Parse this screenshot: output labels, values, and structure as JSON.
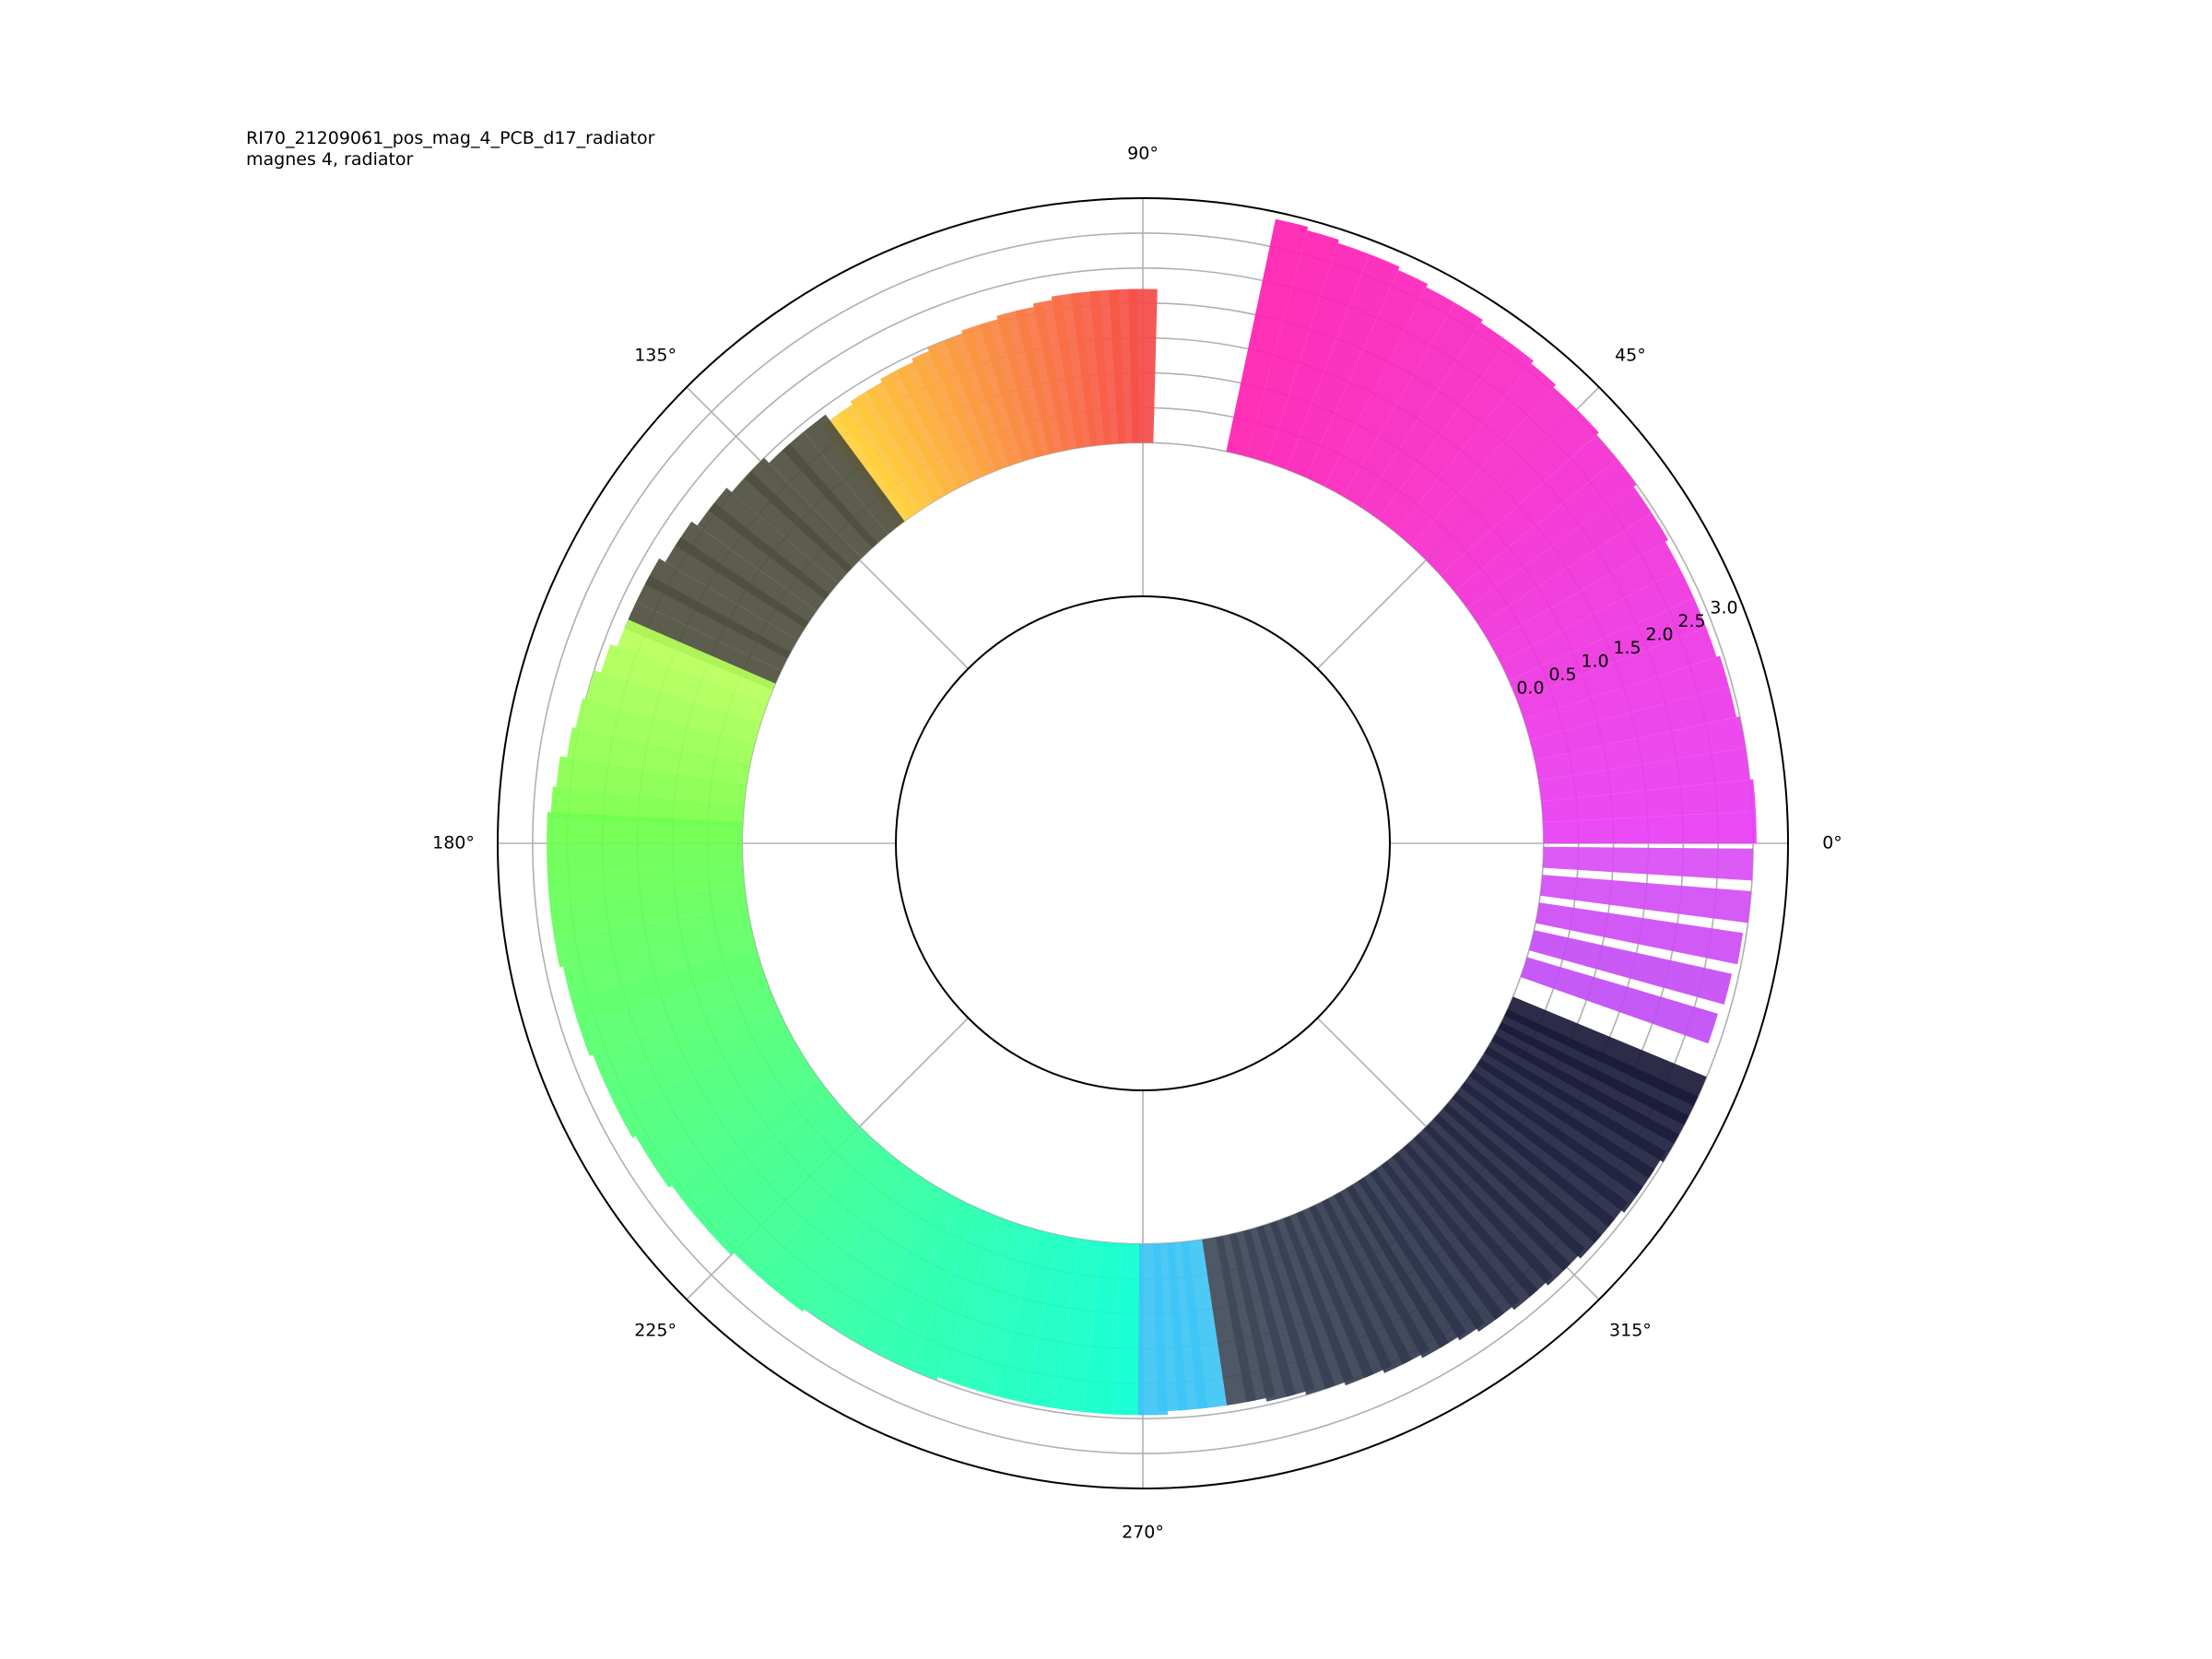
{
  "chart_data": {
    "type": "bar",
    "subtype": "polar",
    "title": "RI70_21209061_pos_mag_4_PCB_d17_radiator",
    "subtitle": "magnes 4, radiator",
    "angle_ticks": [
      "0°",
      "45°",
      "90°",
      "135°",
      "180°",
      "225°",
      "270°",
      "315°"
    ],
    "radial_ticks": [
      "0.0",
      "0.5",
      "1.0",
      "1.5",
      "2.0",
      "2.5",
      "3.0"
    ],
    "rlim": [
      -2.2,
      3.5
    ],
    "bar_base": 0.0,
    "grid": true,
    "bar_width_deg": 3.0,
    "series": [
      {
        "segment": "magenta",
        "color_start": "#e83cf5",
        "color_end": "#ff1fb0",
        "theta": [
          1.5,
          4.5,
          7.5,
          10.5,
          13.5,
          16.5,
          19.5,
          22.5,
          25.5,
          28.5,
          31.5,
          34.5,
          37.5,
          40.5,
          43.5,
          46.5,
          49.5,
          52.5,
          55.5,
          58.5,
          61.5,
          64.5,
          67.5,
          70.5,
          73.5,
          76.5
        ],
        "r": [
          3.05,
          3.05,
          3.0,
          3.0,
          2.95,
          2.95,
          2.9,
          2.9,
          2.9,
          2.9,
          2.95,
          2.95,
          3.0,
          3.0,
          3.05,
          3.05,
          3.1,
          3.15,
          3.15,
          3.2,
          3.2,
          3.25,
          3.3,
          3.3,
          3.35,
          3.4
        ]
      },
      {
        "segment": "red-orange",
        "color_start": "#f54a4a",
        "color_end": "#ffcf3c",
        "theta": [
          90,
          92,
          94,
          96,
          98,
          100,
          102,
          104,
          106,
          108,
          110,
          112,
          114,
          116,
          118,
          120,
          122,
          124,
          126
        ],
        "r": [
          2.2,
          2.2,
          2.2,
          2.2,
          2.2,
          2.15,
          2.1,
          2.1,
          2.05,
          2.05,
          2.0,
          2.0,
          1.95,
          1.9,
          1.9,
          1.85,
          1.85,
          1.8,
          1.8
        ]
      },
      {
        "segment": "dark-olive",
        "color": "#4f4f3f",
        "theta": [
          128,
          131,
          133,
          136,
          138,
          141,
          143,
          146,
          148,
          151,
          153,
          156
        ],
        "r": [
          1.9,
          1.9,
          1.9,
          2.0,
          2.0,
          2.1,
          2.1,
          2.2,
          2.2,
          2.3,
          2.3,
          2.3
        ]
      },
      {
        "segment": "lime",
        "color_start": "#b6ff5a",
        "color_end": "#7dff4a",
        "theta": [
          158,
          161,
          164,
          167,
          170,
          173,
          176
        ],
        "r": [
          2.3,
          2.4,
          2.5,
          2.55,
          2.6,
          2.7,
          2.75
        ]
      },
      {
        "segment": "green-cyan",
        "color_start": "#6cff4c",
        "color_end": "#0affd0",
        "theta": [
          178.5,
          181.5,
          184.5,
          187.5,
          190.5,
          193.5,
          196.5,
          199.5,
          202.5,
          205.5,
          208.5,
          211.5,
          214.5,
          217.5,
          220.5,
          223.5,
          226.5,
          229.5,
          232.5,
          235.5,
          238.5,
          241.5,
          244.5,
          247.5,
          250.5,
          253.5,
          256.5,
          259.5,
          262.5,
          265.5,
          268.5
        ],
        "r": [
          2.8,
          2.8,
          2.8,
          2.8,
          2.8,
          2.75,
          2.75,
          2.75,
          2.7,
          2.7,
          2.7,
          2.65,
          2.65,
          2.6,
          2.6,
          2.6,
          2.55,
          2.55,
          2.55,
          2.5,
          2.5,
          2.5,
          2.5,
          2.5,
          2.45,
          2.45,
          2.45,
          2.45,
          2.45,
          2.45,
          2.45
        ]
      },
      {
        "segment": "sky-blue",
        "color": "#3ec4f5",
        "theta": [
          271,
          273,
          275,
          277
        ],
        "r": [
          2.45,
          2.4,
          2.4,
          2.4
        ]
      },
      {
        "segment": "slate",
        "color_start": "#3f4a5a",
        "color_end": "#1a1a3a",
        "theta": [
          280,
          282,
          284,
          286,
          288,
          290,
          292,
          294,
          296,
          298,
          300,
          302,
          304,
          306,
          308,
          310,
          312,
          314,
          316,
          318,
          320,
          322,
          324,
          326,
          328,
          330,
          332,
          334,
          336
        ],
        "r": [
          2.4,
          2.4,
          2.45,
          2.45,
          2.5,
          2.5,
          2.55,
          2.55,
          2.6,
          2.6,
          2.65,
          2.65,
          2.7,
          2.75,
          2.75,
          2.8,
          2.8,
          2.85,
          2.85,
          2.9,
          2.9,
          2.9,
          2.95,
          2.95,
          2.95,
          3.0,
          3.0,
          3.0,
          3.0
        ]
      },
      {
        "segment": "violet",
        "color_start": "#c04cf5",
        "color_end": "#d94cf5",
        "theta": [
          342,
          346,
          350,
          354,
          358
        ],
        "r": [
          2.85,
          2.9,
          2.95,
          3.0,
          3.0
        ]
      }
    ]
  },
  "colors": {
    "grid": "#b0b0b0",
    "axis": "#000000"
  }
}
